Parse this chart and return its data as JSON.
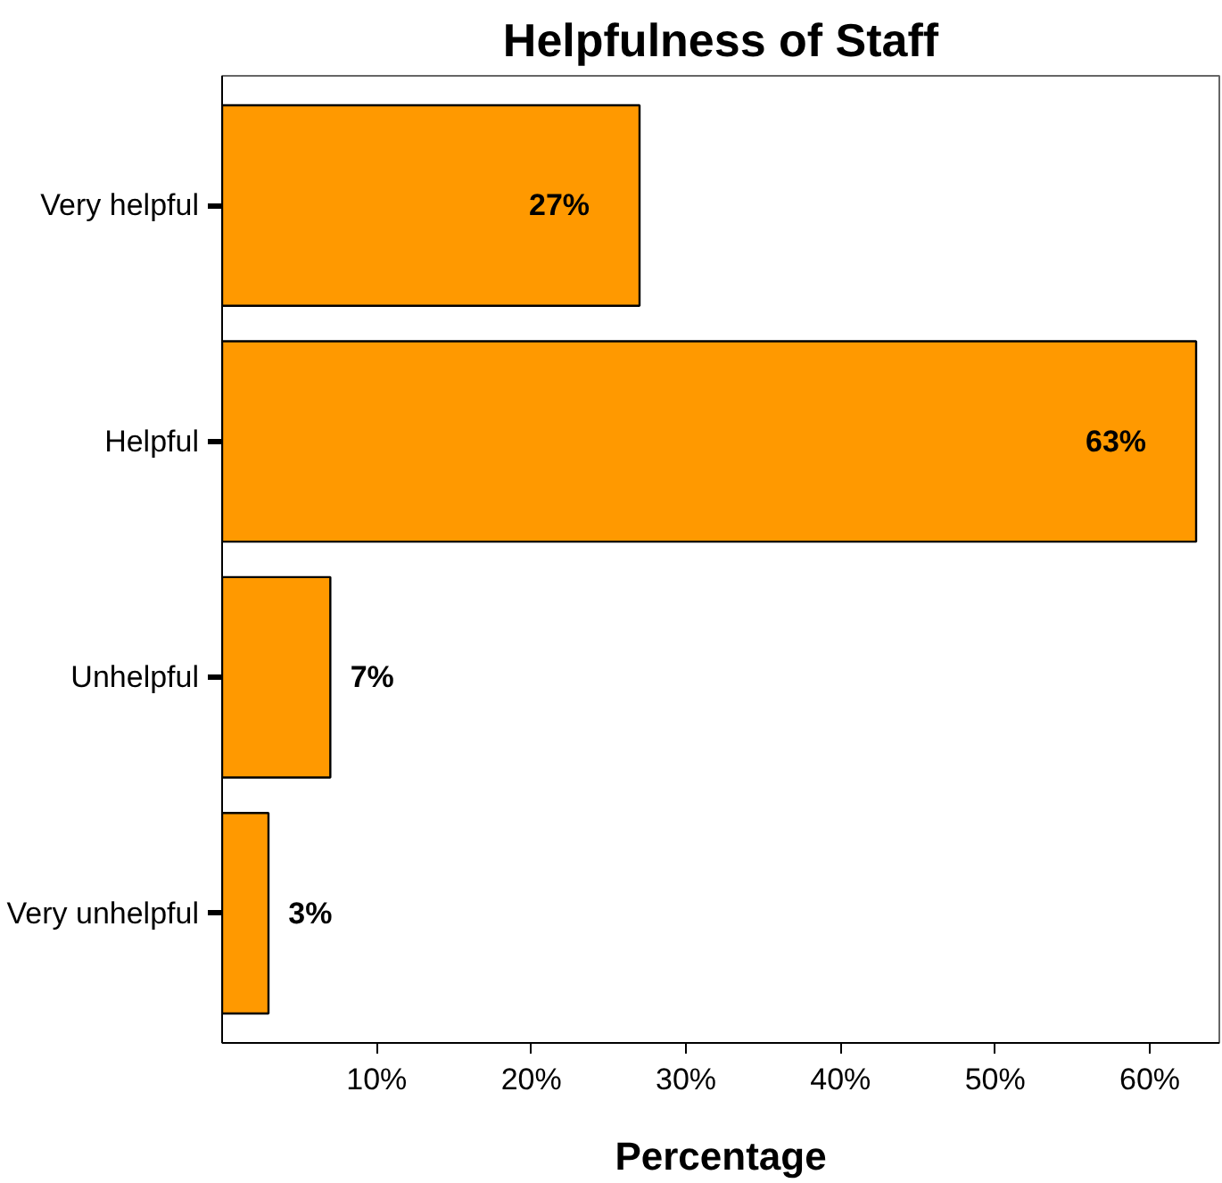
{
  "chart_data": {
    "type": "bar",
    "orientation": "horizontal",
    "title": "Helpfulness of Staff",
    "xlabel": "Percentage",
    "categories": [
      "Very helpful",
      "Helpful",
      "Unhelpful",
      "Very unhelpful"
    ],
    "values": [
      27,
      63,
      7,
      3
    ],
    "value_labels": [
      "27%",
      "63%",
      "7%",
      "3%"
    ],
    "color": "#ff9900",
    "xlim": [
      0,
      64.5
    ],
    "xticks": [
      {
        "value": 10,
        "label": "10%"
      },
      {
        "value": 20,
        "label": "20%"
      },
      {
        "value": 30,
        "label": "30%"
      },
      {
        "value": 40,
        "label": "40%"
      },
      {
        "value": 50,
        "label": "50%"
      },
      {
        "value": 60,
        "label": "60%"
      }
    ],
    "grid": false
  }
}
